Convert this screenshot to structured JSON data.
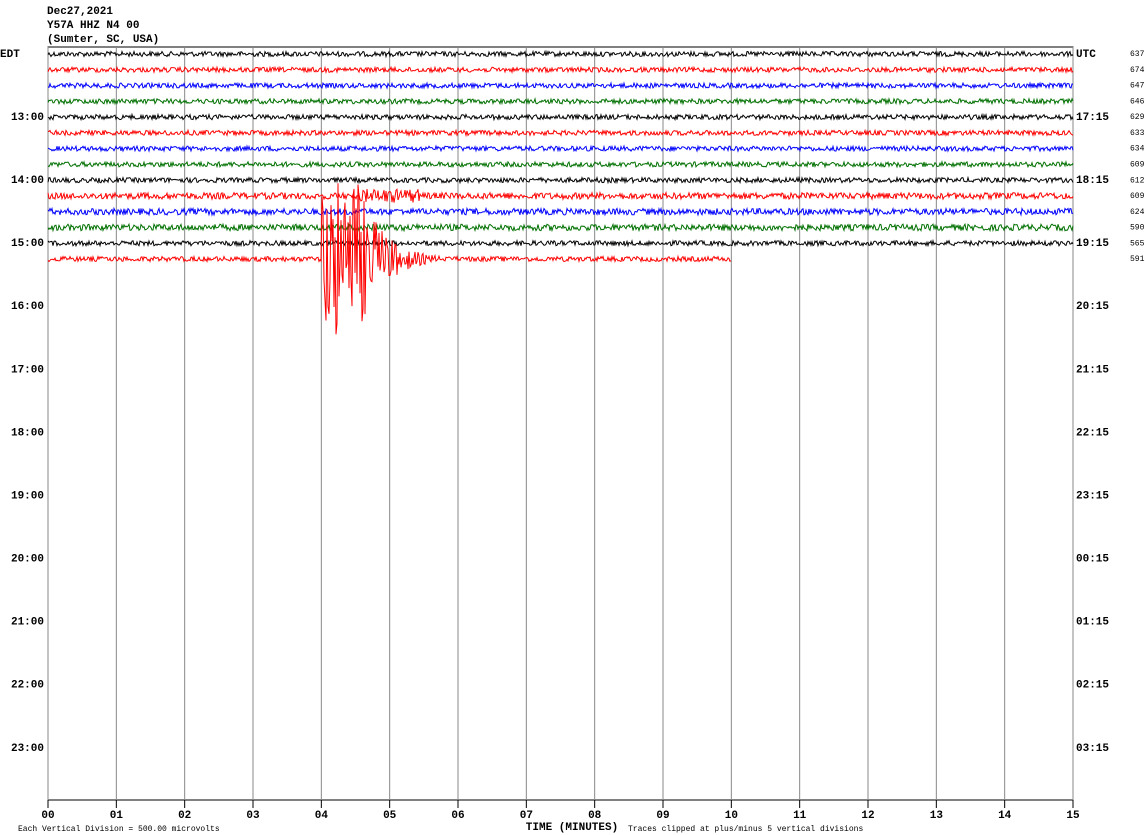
{
  "chart_data": {
    "type": "helicorder",
    "title_lines": [
      "Dec27,2021",
      "Y57A HHZ N4 00",
      "(Sumter, SC, USA)"
    ],
    "xlabel": "TIME (MINUTES)",
    "footnote_left": "Each Vertical Division =  500.00 microvolts",
    "footnote_right": "Traces clipped at plus/minus 5 vertical divisions",
    "xlim": [
      0,
      15
    ],
    "xticks": [
      {
        "value": 0,
        "label": "00"
      },
      {
        "value": 1,
        "label": "01"
      },
      {
        "value": 2,
        "label": "02"
      },
      {
        "value": 3,
        "label": "03"
      },
      {
        "value": 4,
        "label": "04"
      },
      {
        "value": 5,
        "label": "05"
      },
      {
        "value": 6,
        "label": "06"
      },
      {
        "value": 7,
        "label": "07"
      },
      {
        "value": 8,
        "label": "08"
      },
      {
        "value": 9,
        "label": "09"
      },
      {
        "value": 10,
        "label": "10"
      },
      {
        "value": 11,
        "label": "11"
      },
      {
        "value": 12,
        "label": "12"
      },
      {
        "value": 13,
        "label": "13"
      },
      {
        "value": 14,
        "label": "14"
      },
      {
        "value": 15,
        "label": "15"
      }
    ],
    "left_labels": [
      "EDT",
      "13:00",
      "14:00",
      "15:00",
      "16:00",
      "17:00",
      "18:00",
      "19:00",
      "20:00",
      "21:00",
      "22:00",
      "23:00"
    ],
    "right_labels": [
      "UTC",
      "17:15",
      "18:15",
      "19:15",
      "20:15",
      "21:15",
      "22:15",
      "23:15",
      "00:15",
      "01:15",
      "02:15",
      "03:15"
    ],
    "traces": [
      {
        "color": "#000000",
        "label": 637,
        "end": 15
      },
      {
        "color": "#ff0000",
        "label": 674,
        "end": 15
      },
      {
        "color": "#0000ff",
        "label": 647,
        "end": 15
      },
      {
        "color": "#007000",
        "label": 646,
        "end": 15
      },
      {
        "color": "#000000",
        "label": 629,
        "end": 15
      },
      {
        "color": "#ff0000",
        "label": 633,
        "end": 15
      },
      {
        "color": "#0000ff",
        "label": 634,
        "end": 15
      },
      {
        "color": "#007000",
        "label": 609,
        "end": 15
      },
      {
        "color": "#000000",
        "label": 612,
        "end": 15
      },
      {
        "color": "#ff0000",
        "label": 609,
        "end": 15
      },
      {
        "color": "#0000ff",
        "label": 624,
        "end": 15
      },
      {
        "color": "#007000",
        "label": 590,
        "end": 15
      },
      {
        "color": "#000000",
        "label": 565,
        "end": 15
      },
      {
        "color": "#ff0000",
        "label": 591,
        "end": 10
      }
    ]
  }
}
